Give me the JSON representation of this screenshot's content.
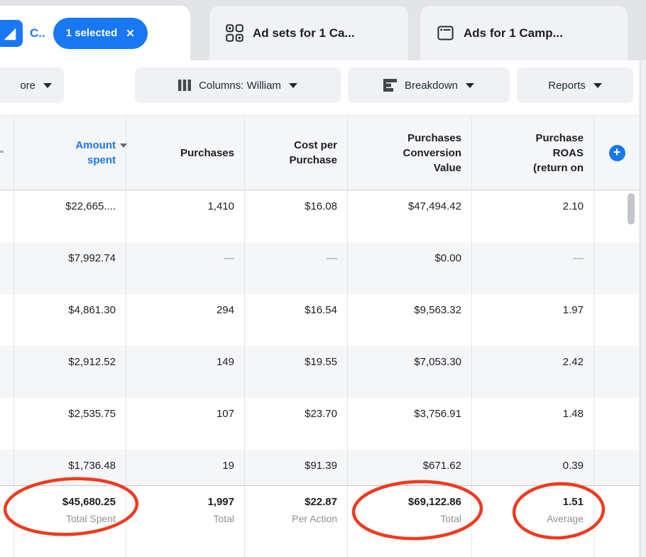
{
  "tabs": {
    "campaigns": {
      "label": "C..",
      "selected_badge": "1 selected",
      "close_glyph": "✕"
    },
    "adsets": {
      "label": "Ad sets for 1 Ca..."
    },
    "ads": {
      "label": "Ads for 1 Camp..."
    }
  },
  "toolbar": {
    "more_label": "ore",
    "columns_label": "Columns: William",
    "breakdown_label": "Breakdown",
    "reports_label": "Reports"
  },
  "table": {
    "headers": [
      {
        "id": "amount-spent",
        "lines": [
          "Amount",
          "spent"
        ],
        "sorted": true
      },
      {
        "id": "purchases",
        "lines": [
          "Purchases"
        ],
        "sorted": false
      },
      {
        "id": "cost-per-purchase",
        "lines": [
          "Cost per",
          "Purchase"
        ],
        "sorted": false
      },
      {
        "id": "purchases-conversion-value",
        "lines": [
          "Purchases",
          "Conversion",
          "Value"
        ],
        "sorted": false
      },
      {
        "id": "purchase-roas",
        "lines": [
          "Purchase",
          "ROAS",
          "(return on"
        ],
        "sorted": false
      }
    ],
    "add_column_glyph": "+",
    "rows": [
      [
        "$22,665....",
        "1,410",
        "$16.08",
        "$47,494.42",
        "2.10"
      ],
      [
        "$7,992.74",
        "—",
        "—",
        "$0.00",
        "—"
      ],
      [
        "$4,861.30",
        "294",
        "$16.54",
        "$9,563.32",
        "1.97"
      ],
      [
        "$2,912.52",
        "149",
        "$19.55",
        "$7,053.30",
        "2.42"
      ],
      [
        "$2,535.75",
        "107",
        "$23.70",
        "$3,756.91",
        "1.48"
      ],
      [
        "$1,736.48",
        "19",
        "$91.39",
        "$671.62",
        "0.39"
      ]
    ],
    "totals": [
      {
        "value": "$45,680.25",
        "label": "Total Spent",
        "circled": true
      },
      {
        "value": "1,997",
        "label": "Total",
        "circled": false
      },
      {
        "value": "$22.87",
        "label": "Per Action",
        "circled": false
      },
      {
        "value": "$69,122.86",
        "label": "Total",
        "circled": true
      },
      {
        "value": "1.51",
        "label": "Average",
        "circled": true
      }
    ]
  },
  "colors": {
    "accent_blue": "#1877f2",
    "annotation_red": "#ef3a1f"
  }
}
